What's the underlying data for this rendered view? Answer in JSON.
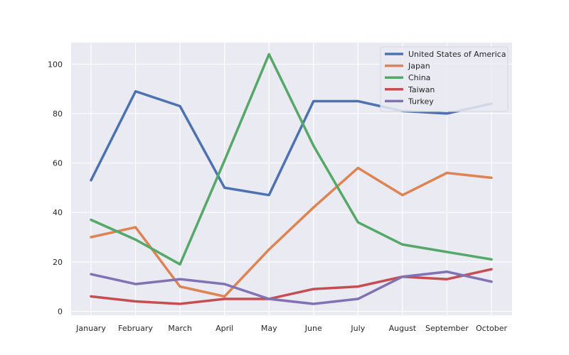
{
  "chart_data": {
    "type": "line",
    "title": "",
    "xlabel": "",
    "ylabel": "",
    "categories": [
      "January",
      "February",
      "March",
      "April",
      "May",
      "June",
      "July",
      "August",
      "September",
      "October"
    ],
    "ylim": [
      -1.6,
      108.7
    ],
    "yticks": [
      0,
      20,
      40,
      60,
      80,
      100
    ],
    "grid": true,
    "legend_position": "top-right",
    "background_color": "#eaeaf2",
    "series": [
      {
        "name": "United States of America",
        "color": "#4c72b0",
        "values": [
          53,
          89,
          83,
          50,
          47,
          85,
          85,
          81,
          80,
          84
        ]
      },
      {
        "name": "Japan",
        "color": "#dd8452",
        "values": [
          30,
          34,
          10,
          6,
          25,
          42,
          58,
          47,
          56,
          54
        ]
      },
      {
        "name": "China",
        "color": "#55a868",
        "values": [
          37,
          29,
          19,
          61,
          104,
          67,
          36,
          27,
          24,
          21
        ]
      },
      {
        "name": "Taiwan",
        "color": "#c44e52",
        "values": [
          6,
          4,
          3,
          5,
          5,
          9,
          10,
          14,
          13,
          17
        ]
      },
      {
        "name": "Turkey",
        "color": "#8172b3",
        "values": [
          15,
          11,
          13,
          11,
          5,
          3,
          5,
          14,
          16,
          12
        ]
      }
    ]
  }
}
